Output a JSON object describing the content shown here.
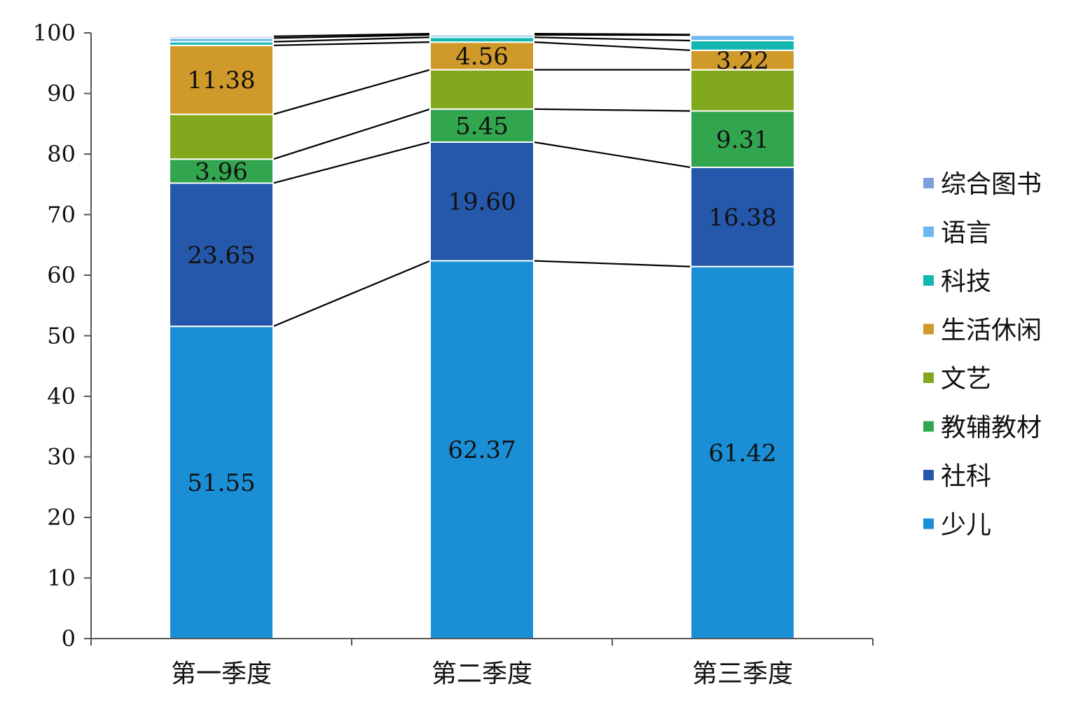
{
  "chart_data": {
    "type": "bar",
    "stacked": true,
    "percent_stacked": true,
    "categories": [
      "第一季度",
      "第二季度",
      "第三季度"
    ],
    "ylim": [
      0,
      100
    ],
    "yticks": [
      0,
      10,
      20,
      30,
      40,
      50,
      60,
      70,
      80,
      90,
      100
    ],
    "legend_position": "right",
    "series_lines": true,
    "series": [
      {
        "name": "少儿",
        "color": "#1b8fd6",
        "values": [
          51.55,
          62.37,
          61.42
        ],
        "labels": [
          "51.55",
          "62.37",
          "61.42"
        ]
      },
      {
        "name": "社科",
        "color": "#2558ab",
        "values": [
          23.65,
          19.6,
          16.38
        ],
        "labels": [
          "23.65",
          "19.60",
          "16.38"
        ]
      },
      {
        "name": "教辅教材",
        "color": "#32a64f",
        "values": [
          3.96,
          5.45,
          9.31
        ],
        "labels": [
          "3.96",
          "5.45",
          "9.31"
        ]
      },
      {
        "name": "文艺",
        "color": "#82a81d",
        "values": [
          7.4,
          6.5,
          6.8
        ],
        "labels": [
          "",
          "",
          ""
        ]
      },
      {
        "name": "生活休闲",
        "color": "#d09a2b",
        "values": [
          11.38,
          4.56,
          3.22
        ],
        "labels": [
          "11.38",
          "4.56",
          "3.22"
        ]
      },
      {
        "name": "科技",
        "color": "#13b7b2",
        "values": [
          0.6,
          0.8,
          1.6
        ],
        "labels": [
          "",
          "",
          ""
        ]
      },
      {
        "name": "语言",
        "color": "#6db8f0",
        "values": [
          0.6,
          0.4,
          0.9
        ],
        "labels": [
          "",
          "",
          ""
        ]
      },
      {
        "name": "综合图书",
        "color": "#7fa0d8",
        "values": [
          0.3,
          0.2,
          0.1
        ],
        "labels": [
          "",
          "",
          ""
        ]
      }
    ]
  }
}
